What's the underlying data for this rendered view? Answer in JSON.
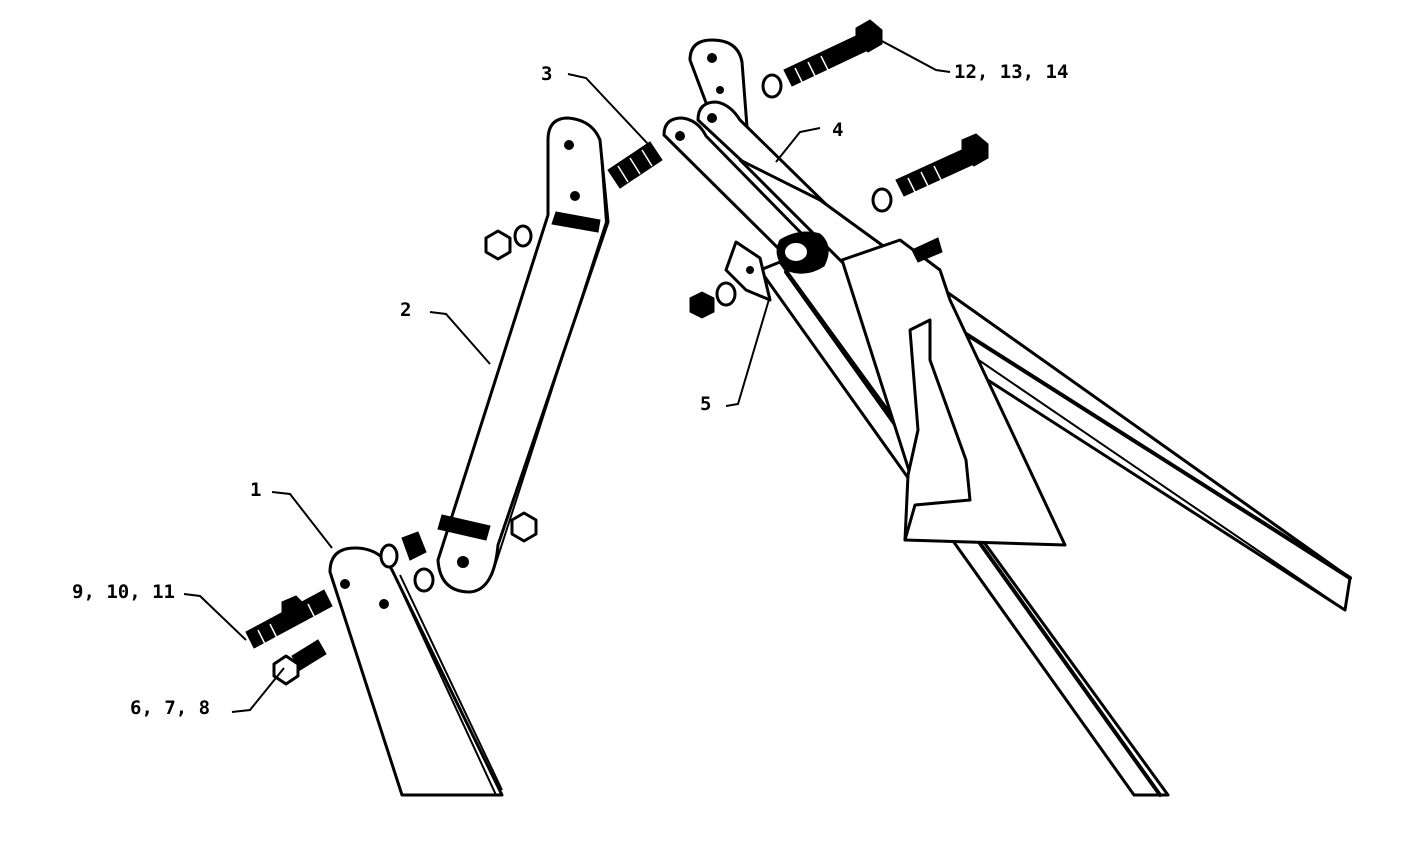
{
  "callouts": {
    "c1": "1",
    "c2": "2",
    "c3": "3",
    "c4": "4",
    "c5": "5",
    "c6": "6, 7, 8",
    "c9": "9, 10, 11",
    "c12": "12, 13, 14"
  },
  "colors": {
    "line": "#000000",
    "background": "#ffffff"
  }
}
